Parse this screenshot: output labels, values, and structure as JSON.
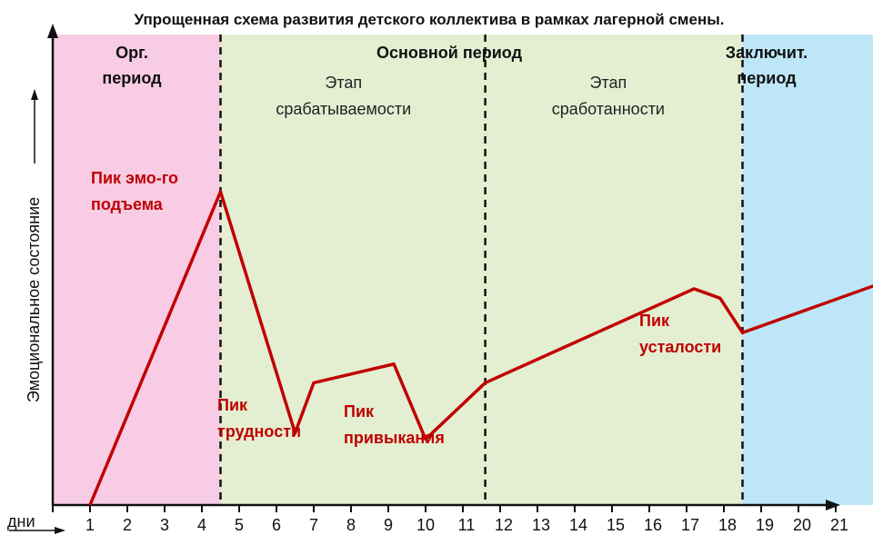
{
  "chart_data": {
    "type": "line",
    "title": "Упрощенная схема развития детского коллектива в рамках лагерной смены.",
    "xlabel": "дни",
    "ylabel": "Эмоциональное состояние",
    "x_ticks": [
      "1",
      "2",
      "3",
      "4",
      "5",
      "6",
      "7",
      "8",
      "9",
      "10",
      "11",
      "12",
      "13",
      "14",
      "15",
      "16",
      "17",
      "18",
      "19",
      "20",
      "21"
    ],
    "periods": [
      {
        "name": "Орг. период",
        "lines": [
          "Орг.",
          "период"
        ],
        "from": 0,
        "to": 4.5,
        "color": "#f7cce4"
      },
      {
        "name": "Основной период",
        "lines": [
          "Основной период"
        ],
        "from": 4.5,
        "to": 18.5,
        "color": "#e4efd2"
      },
      {
        "name": "Заключит. период",
        "lines": [
          "Заключит.",
          "период"
        ],
        "from": 18.5,
        "to": 22.5,
        "color": "#bde7f9"
      }
    ],
    "stages": [
      {
        "lines": [
          "Этап",
          "срабатываемости"
        ],
        "center": 7.8
      },
      {
        "lines": [
          "Этап",
          "сработанности"
        ],
        "center": 14.9
      }
    ],
    "boundaries": [
      4.5,
      11.6,
      18.5
    ],
    "line_color": "#c00000",
    "series": [
      {
        "x": [
          1,
          4.5,
          6.5,
          7,
          9.15,
          10,
          11.6,
          17.2,
          17.9,
          18.5,
          22.5
        ],
        "y": [
          0,
          100,
          23,
          39,
          45,
          21,
          39,
          69,
          66,
          55,
          72
        ]
      }
    ],
    "annotations": [
      {
        "lines": [
          "Пик эмо-го",
          "подъема"
        ],
        "x": 1,
        "y": 100
      },
      {
        "lines": [
          "Пик",
          "трудности"
        ],
        "x": 6.5,
        "y": 23
      },
      {
        "lines": [
          "Пик",
          "привыкания"
        ],
        "x": 10,
        "y": 21
      },
      {
        "lines": [
          "Пик",
          "усталости"
        ],
        "x": 18.5,
        "y": 55
      }
    ],
    "xlim": [
      0,
      22.5
    ],
    "ylim": [
      0,
      100
    ]
  }
}
